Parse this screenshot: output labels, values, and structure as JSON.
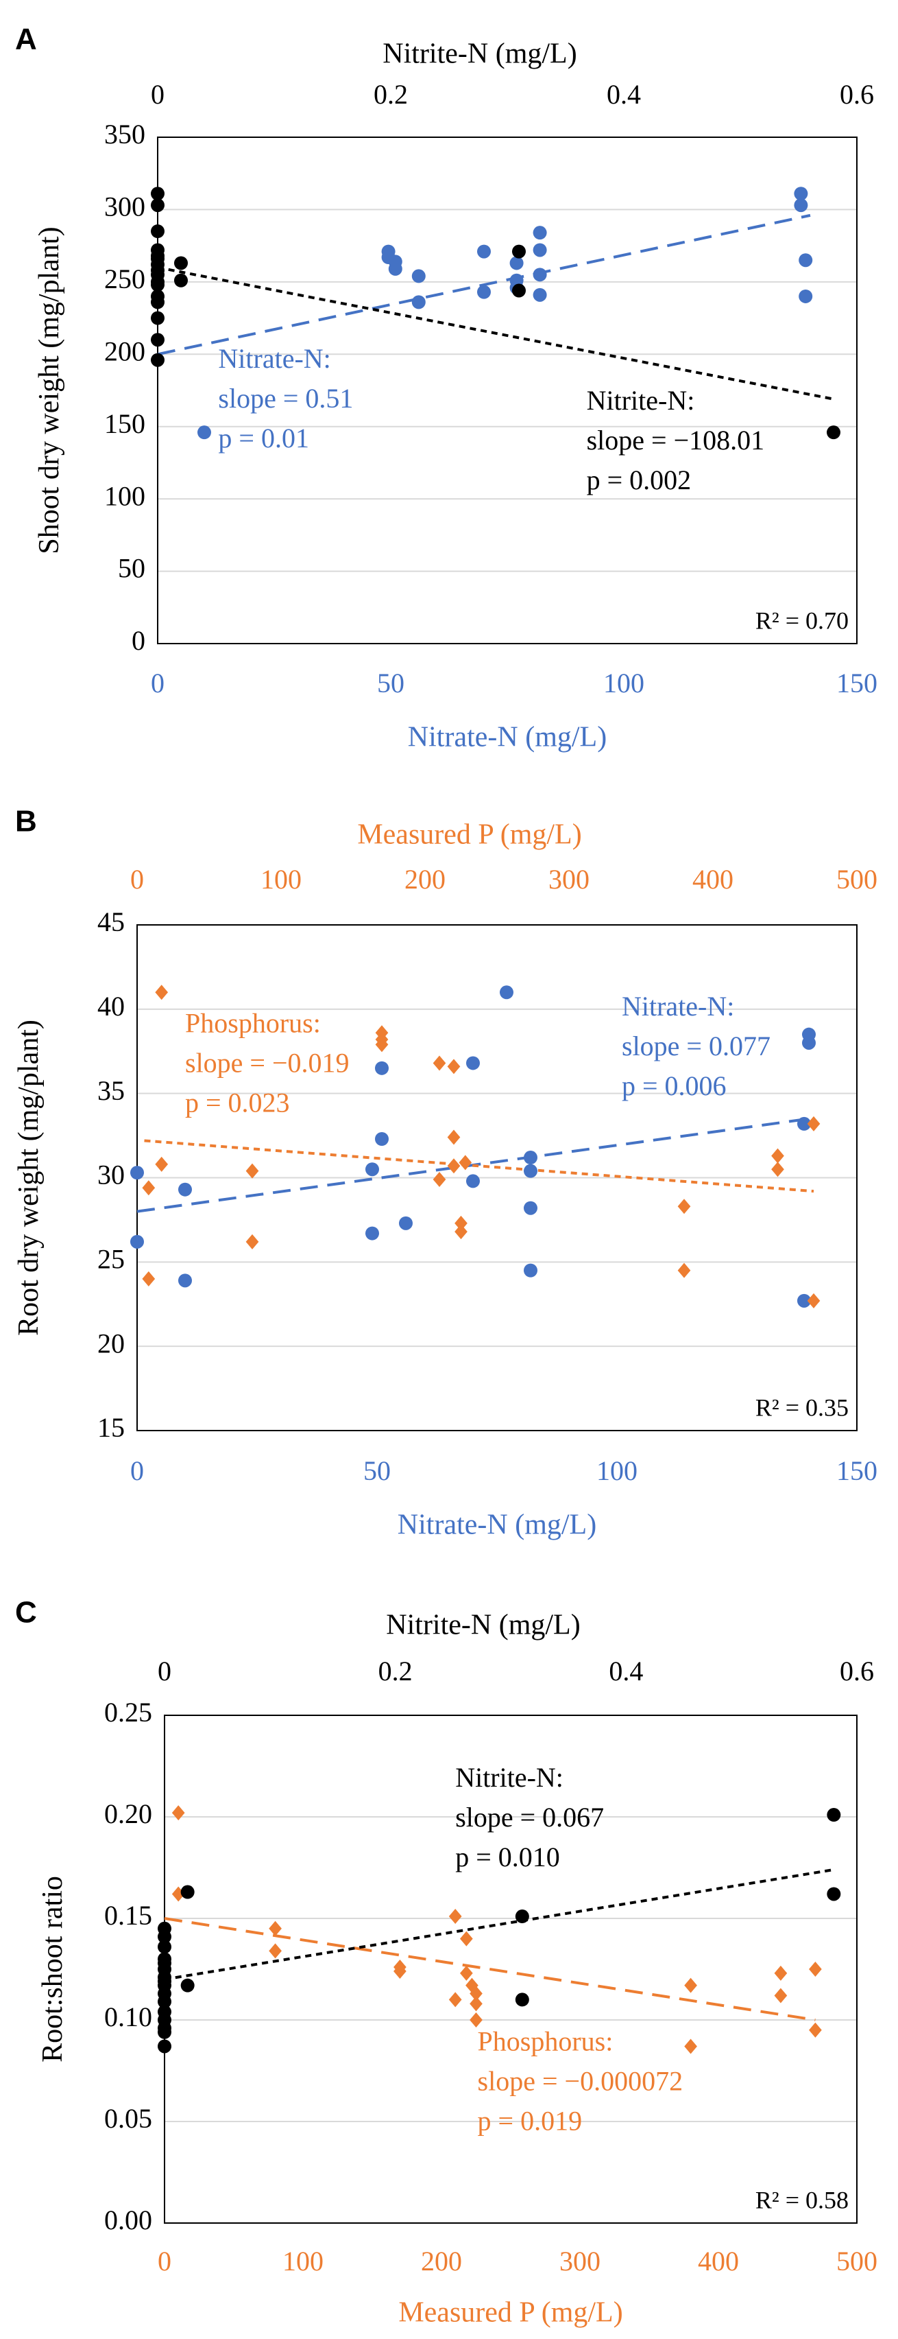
{
  "colors": {
    "nitrate": "#4472C4",
    "nitrite": "#000000",
    "phosphorus": "#ED7D31",
    "grid": "#d9d9d9",
    "axis": "#000000"
  },
  "chart_data": [
    {
      "id": "A",
      "type": "scatter",
      "panel_label": "A",
      "ylabel": "Shoot dry weight (mg/plant)",
      "ylim": [
        0,
        350
      ],
      "yticks": [
        0,
        50,
        100,
        150,
        200,
        250,
        300,
        350
      ],
      "bottom_axis": {
        "label": "Nitrate-N (mg/L)",
        "lim": [
          0,
          150
        ],
        "ticks": [
          0,
          50,
          100,
          150
        ],
        "color_key": "nitrate"
      },
      "top_axis": {
        "label": "Nitrite-N (mg/L)",
        "lim": [
          0,
          0.6
        ],
        "ticks": [
          0,
          0.2,
          0.4,
          0.6
        ],
        "color_key": "nitrite"
      },
      "r2_label": "R² = 0.70",
      "series": [
        {
          "name": "Nitrate-N",
          "axis": "bottom",
          "marker": "circle",
          "color_key": "nitrate",
          "x": [
            10,
            49.5,
            49.5,
            51,
            51,
            56,
            56,
            70,
            70,
            77,
            77,
            77,
            82,
            82,
            82,
            82,
            138,
            138,
            139,
            139
          ],
          "y": [
            146,
            271,
            267,
            264,
            259,
            254,
            236,
            271,
            243,
            263,
            251,
            246,
            284,
            272,
            255,
            241,
            311,
            303,
            265,
            240
          ]
        },
        {
          "name": "Nitrite-N",
          "axis": "top",
          "marker": "circle",
          "color_key": "nitrite",
          "x": [
            0,
            0,
            0,
            0,
            0,
            0,
            0,
            0,
            0,
            0,
            0,
            0,
            0,
            0,
            0,
            0,
            0.02,
            0.02,
            0.31,
            0.31,
            0.58
          ],
          "y": [
            311,
            303,
            285,
            272,
            268,
            262,
            258,
            255,
            250,
            240,
            236,
            225,
            210,
            196,
            266,
            248,
            263,
            251,
            271,
            244,
            146
          ]
        }
      ],
      "trendlines": [
        {
          "name": "Nitrate-N fit",
          "axis": "bottom",
          "style": "long-dash",
          "color_key": "nitrate",
          "x": [
            0,
            140
          ],
          "y": [
            200,
            296
          ]
        },
        {
          "name": "Nitrite-N fit",
          "axis": "top",
          "style": "short-dash",
          "color_key": "nitrite",
          "x": [
            0,
            0.58
          ],
          "y": [
            260,
            169
          ]
        }
      ],
      "annotations": [
        {
          "color_key": "nitrate",
          "lines": [
            "Nitrate-N:",
            "slope = 0.51",
            "p = 0.01"
          ],
          "anchor_x": 13,
          "anchor_y": 195,
          "axis": "bottom"
        },
        {
          "color_key": "nitrite",
          "lines": [
            "Nitrite-N:",
            "slope = −108.01",
            "p = 0.002"
          ],
          "anchor_x": 92,
          "anchor_y": 166,
          "axis": "bottom"
        }
      ]
    },
    {
      "id": "B",
      "type": "scatter",
      "panel_label": "B",
      "ylabel": "Root dry weight (mg/plant)",
      "ylim": [
        15,
        45
      ],
      "yticks": [
        15,
        20,
        25,
        30,
        35,
        40,
        45
      ],
      "bottom_axis": {
        "label": "Nitrate-N (mg/L)",
        "lim": [
          0,
          150
        ],
        "ticks": [
          0,
          50,
          100,
          150
        ],
        "color_key": "nitrate"
      },
      "top_axis": {
        "label": "Measured P (mg/L)",
        "lim": [
          0,
          500
        ],
        "ticks": [
          0,
          100,
          200,
          300,
          400,
          500
        ],
        "color_key": "phosphorus"
      },
      "r2_label": "R² = 0.35",
      "series": [
        {
          "name": "Nitrate-N",
          "axis": "bottom",
          "marker": "circle",
          "color_key": "nitrate",
          "x": [
            0,
            0,
            10,
            10,
            49,
            49,
            51,
            51,
            56,
            70,
            70,
            77,
            82,
            82,
            82,
            82,
            139,
            139,
            140,
            140
          ],
          "y": [
            30.3,
            26.2,
            29.3,
            23.9,
            30.5,
            26.7,
            36.5,
            32.3,
            27.3,
            36.8,
            29.8,
            41.0,
            31.2,
            30.4,
            28.2,
            24.5,
            22.7,
            33.2,
            38.0,
            38.5
          ]
        },
        {
          "name": "Phosphorus",
          "axis": "top",
          "marker": "diamond",
          "color_key": "phosphorus",
          "x": [
            8,
            8,
            17,
            17,
            80,
            80,
            170,
            170,
            170,
            210,
            210,
            220,
            220,
            220,
            225,
            225,
            228,
            380,
            380,
            445,
            445,
            470,
            470
          ],
          "y": [
            29.4,
            24.0,
            41.0,
            30.8,
            30.4,
            26.2,
            38.6,
            38.2,
            37.9,
            36.8,
            29.9,
            36.6,
            32.4,
            30.7,
            27.3,
            26.8,
            30.9,
            28.3,
            24.5,
            31.3,
            30.5,
            33.2,
            22.7
          ]
        }
      ],
      "trendlines": [
        {
          "name": "Nitrate-N fit",
          "axis": "bottom",
          "style": "long-dash",
          "color_key": "nitrate",
          "x": [
            0,
            140
          ],
          "y": [
            28.0,
            33.5
          ]
        },
        {
          "name": "Phosphorus fit",
          "axis": "top",
          "style": "short-dash",
          "color_key": "phosphorus",
          "x": [
            5,
            470
          ],
          "y": [
            32.2,
            29.2
          ]
        }
      ],
      "annotations": [
        {
          "color_key": "phosphorus",
          "lines": [
            "Phosphorus:",
            "slope = −0.019",
            "p = 0.023"
          ],
          "anchor_x": 10,
          "anchor_y": 39.0,
          "axis": "bottom"
        },
        {
          "color_key": "nitrate",
          "lines": [
            "Nitrate-N:",
            "slope = 0.077",
            "p = 0.006"
          ],
          "anchor_x": 101,
          "anchor_y": 40.0,
          "axis": "bottom"
        }
      ]
    },
    {
      "id": "C",
      "type": "scatter",
      "panel_label": "C",
      "ylabel": "Root:shoot ratio",
      "ylim": [
        0,
        0.25
      ],
      "yticks": [
        0.0,
        0.05,
        0.1,
        0.15,
        0.2,
        0.25
      ],
      "ytick_labels": [
        "0.00",
        "0.05",
        "0.10",
        "0.15",
        "0.20",
        "0.25"
      ],
      "bottom_axis": {
        "label": "Measured P (mg/L)",
        "lim": [
          0,
          500
        ],
        "ticks": [
          0,
          100,
          200,
          300,
          400,
          500
        ],
        "color_key": "phosphorus"
      },
      "top_axis": {
        "label": "Nitrite-N (mg/L)",
        "lim": [
          0,
          0.6
        ],
        "ticks": [
          0,
          0.2,
          0.4,
          0.6
        ],
        "color_key": "nitrite"
      },
      "r2_label": "R² = 0.58",
      "series": [
        {
          "name": "Phosphorus",
          "axis": "bottom",
          "marker": "diamond",
          "color_key": "phosphorus",
          "x": [
            10,
            10,
            80,
            80,
            170,
            170,
            210,
            210,
            218,
            218,
            222,
            225,
            225,
            225,
            380,
            380,
            445,
            445,
            470,
            470
          ],
          "y": [
            0.202,
            0.162,
            0.145,
            0.134,
            0.126,
            0.124,
            0.151,
            0.11,
            0.14,
            0.123,
            0.117,
            0.113,
            0.108,
            0.1,
            0.117,
            0.087,
            0.123,
            0.112,
            0.125,
            0.095
          ]
        },
        {
          "name": "Nitrite-N",
          "axis": "top",
          "marker": "circle",
          "color_key": "nitrite",
          "x": [
            0,
            0,
            0,
            0,
            0,
            0,
            0,
            0,
            0,
            0,
            0,
            0,
            0,
            0,
            0,
            0,
            0.02,
            0.02,
            0.31,
            0.31,
            0.58,
            0.58
          ],
          "y": [
            0.145,
            0.141,
            0.136,
            0.13,
            0.125,
            0.121,
            0.117,
            0.113,
            0.109,
            0.104,
            0.1,
            0.096,
            0.094,
            0.087,
            0.128,
            0.119,
            0.163,
            0.117,
            0.151,
            0.11,
            0.201,
            0.162
          ]
        }
      ],
      "trendlines": [
        {
          "name": "Phosphorus fit",
          "axis": "bottom",
          "style": "long-dash",
          "color_key": "phosphorus",
          "x": [
            0,
            470
          ],
          "y": [
            0.15,
            0.1
          ]
        },
        {
          "name": "Nitrite-N fit",
          "axis": "top",
          "style": "short-dash",
          "color_key": "nitrite",
          "x": [
            0,
            0.58
          ],
          "y": [
            0.12,
            0.174
          ]
        }
      ],
      "annotations": [
        {
          "color_key": "nitrite",
          "lines": [
            "Nitrite-N:",
            "slope = 0.067",
            "p = 0.010"
          ],
          "anchor_x": 210,
          "anchor_y": 0.218,
          "axis": "bottom"
        },
        {
          "color_key": "phosphorus",
          "lines": [
            "Phosphorus:",
            "slope = −0.000072",
            "p = 0.019"
          ],
          "anchor_x": 226,
          "anchor_y": 0.088,
          "axis": "bottom"
        }
      ]
    }
  ]
}
